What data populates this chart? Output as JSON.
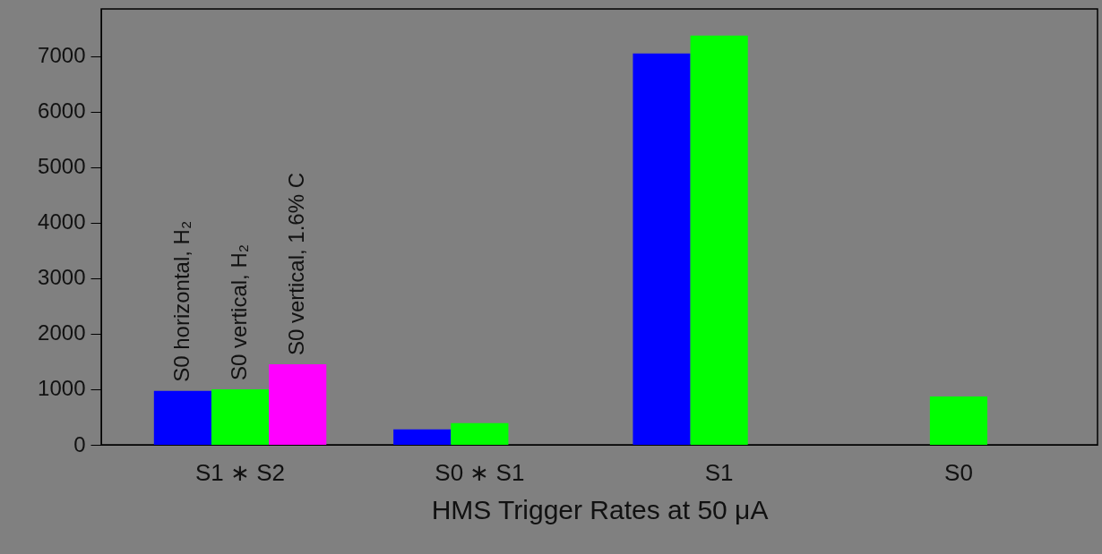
{
  "chart_data": {
    "type": "bar",
    "xlabel": "HMS Trigger Rates  at  50 μA",
    "categories": [
      "S1 ∗ S2",
      "S0 ∗ S1",
      "S1",
      "S0"
    ],
    "series": [
      {
        "name": "S0 horizontal, H₂",
        "color": "#0000ff",
        "values": [
          970,
          280,
          7050,
          null
        ]
      },
      {
        "name": "S0 vertical, H₂",
        "color": "#00ff00",
        "values": [
          1000,
          390,
          7370,
          870
        ]
      },
      {
        "name": "S0 vertical, 1.6% C",
        "color": "#ff00ff",
        "values": [
          1450,
          null,
          null,
          null
        ]
      }
    ],
    "ylim": [
      0,
      7850
    ],
    "yticks": [
      0,
      1000,
      2000,
      3000,
      4000,
      5000,
      6000,
      7000
    ],
    "grid": false
  }
}
